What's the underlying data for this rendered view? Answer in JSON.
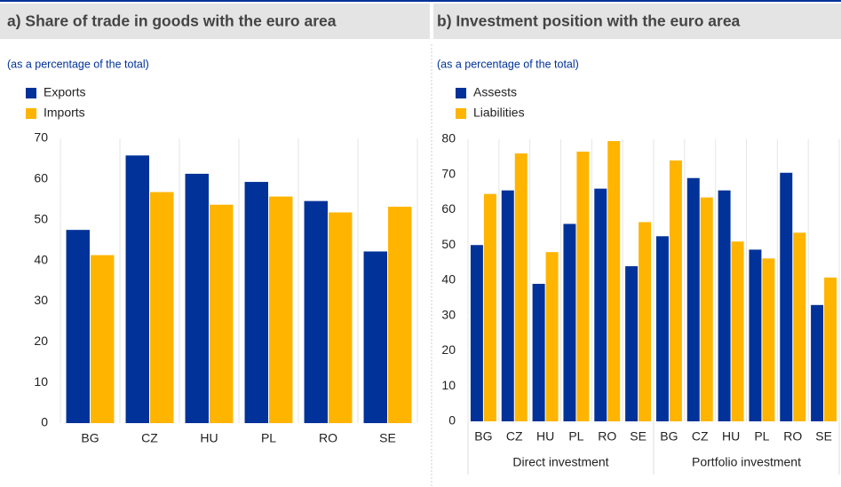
{
  "chart_data": [
    {
      "type": "bar",
      "title": "a) Share of trade in goods with the euro area",
      "subtitle": "(as a percentage of the total)",
      "categories": [
        "BG",
        "CZ",
        "HU",
        "PL",
        "RO",
        "SE"
      ],
      "series": [
        {
          "name": "Exports",
          "color": "#003299",
          "values": [
            47.5,
            65.8,
            61.3,
            59.3,
            54.6,
            42.2
          ]
        },
        {
          "name": "Imports",
          "color": "#ffb400",
          "values": [
            41.3,
            56.8,
            53.7,
            55.7,
            51.8,
            53.2
          ]
        }
      ],
      "ylim": [
        0,
        70
      ],
      "yticks": [
        0,
        10,
        20,
        30,
        40,
        50,
        60,
        70
      ]
    },
    {
      "type": "bar",
      "title": "b) Investment position with the euro area",
      "subtitle": "(as a percentage of the total)",
      "categories": [
        "BG",
        "CZ",
        "HU",
        "PL",
        "RO",
        "SE",
        "BG",
        "CZ",
        "HU",
        "PL",
        "RO",
        "SE"
      ],
      "groups": [
        "Direct investment",
        "Portfolio investment"
      ],
      "series": [
        {
          "name": "Assests",
          "color": "#003299",
          "values": [
            50,
            65.5,
            39,
            56,
            66,
            44,
            52.5,
            69,
            65.5,
            48.7,
            70.5,
            33
          ]
        },
        {
          "name": "Liabilities",
          "color": "#ffb400",
          "values": [
            64.5,
            76,
            48,
            76.5,
            79.5,
            56.5,
            74,
            63.5,
            51,
            46.2,
            53.5,
            40.8
          ]
        }
      ],
      "ylim": [
        0,
        80
      ],
      "yticks": [
        0,
        10,
        20,
        30,
        40,
        50,
        60,
        70,
        80
      ]
    }
  ]
}
